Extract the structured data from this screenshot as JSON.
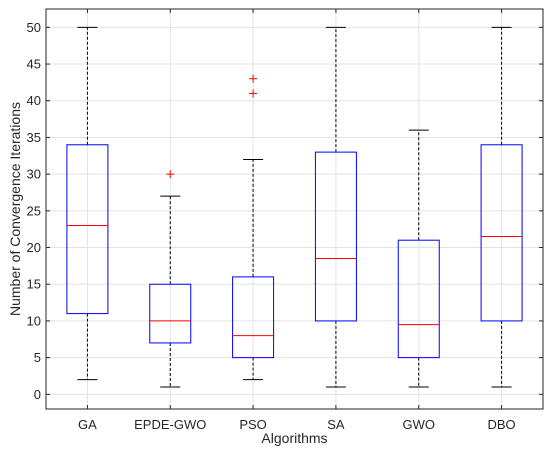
{
  "chart_data": {
    "type": "boxplot",
    "title": "",
    "xlabel": "Algorithms",
    "ylabel": "Number of Convergence Iterations",
    "ylim": [
      -2,
      52.5
    ],
    "yticks": [
      0,
      5,
      10,
      15,
      20,
      25,
      30,
      35,
      40,
      45,
      50
    ],
    "grid": true,
    "categories": [
      "GA",
      "EPDE-GWO",
      "PSO",
      "SA",
      "GWO",
      "DBO"
    ],
    "boxes": [
      {
        "category": "GA",
        "whisker_low": 2,
        "q1": 11,
        "median": 23,
        "q3": 34,
        "whisker_high": 50,
        "outliers": []
      },
      {
        "category": "EPDE-GWO",
        "whisker_low": 1,
        "q1": 7,
        "median": 10,
        "q3": 15,
        "whisker_high": 27,
        "outliers": [
          30
        ]
      },
      {
        "category": "PSO",
        "whisker_low": 2,
        "q1": 5,
        "median": 8,
        "q3": 16,
        "whisker_high": 32,
        "outliers": [
          41,
          43
        ]
      },
      {
        "category": "SA",
        "whisker_low": 1,
        "q1": 10,
        "median": 18.5,
        "q3": 33,
        "whisker_high": 50,
        "outliers": []
      },
      {
        "category": "GWO",
        "whisker_low": 1,
        "q1": 5,
        "median": 9.5,
        "q3": 21,
        "whisker_high": 36,
        "outliers": []
      },
      {
        "category": "DBO",
        "whisker_low": 1,
        "q1": 10,
        "median": 21.5,
        "q3": 34,
        "whisker_high": 50,
        "outliers": []
      }
    ],
    "colors": {
      "box": "#0000ff",
      "median": "#ff0000",
      "whisker": "#000000",
      "outlier": "#ff0000",
      "grid": "#e3e3e3",
      "axis": "#262626"
    }
  }
}
